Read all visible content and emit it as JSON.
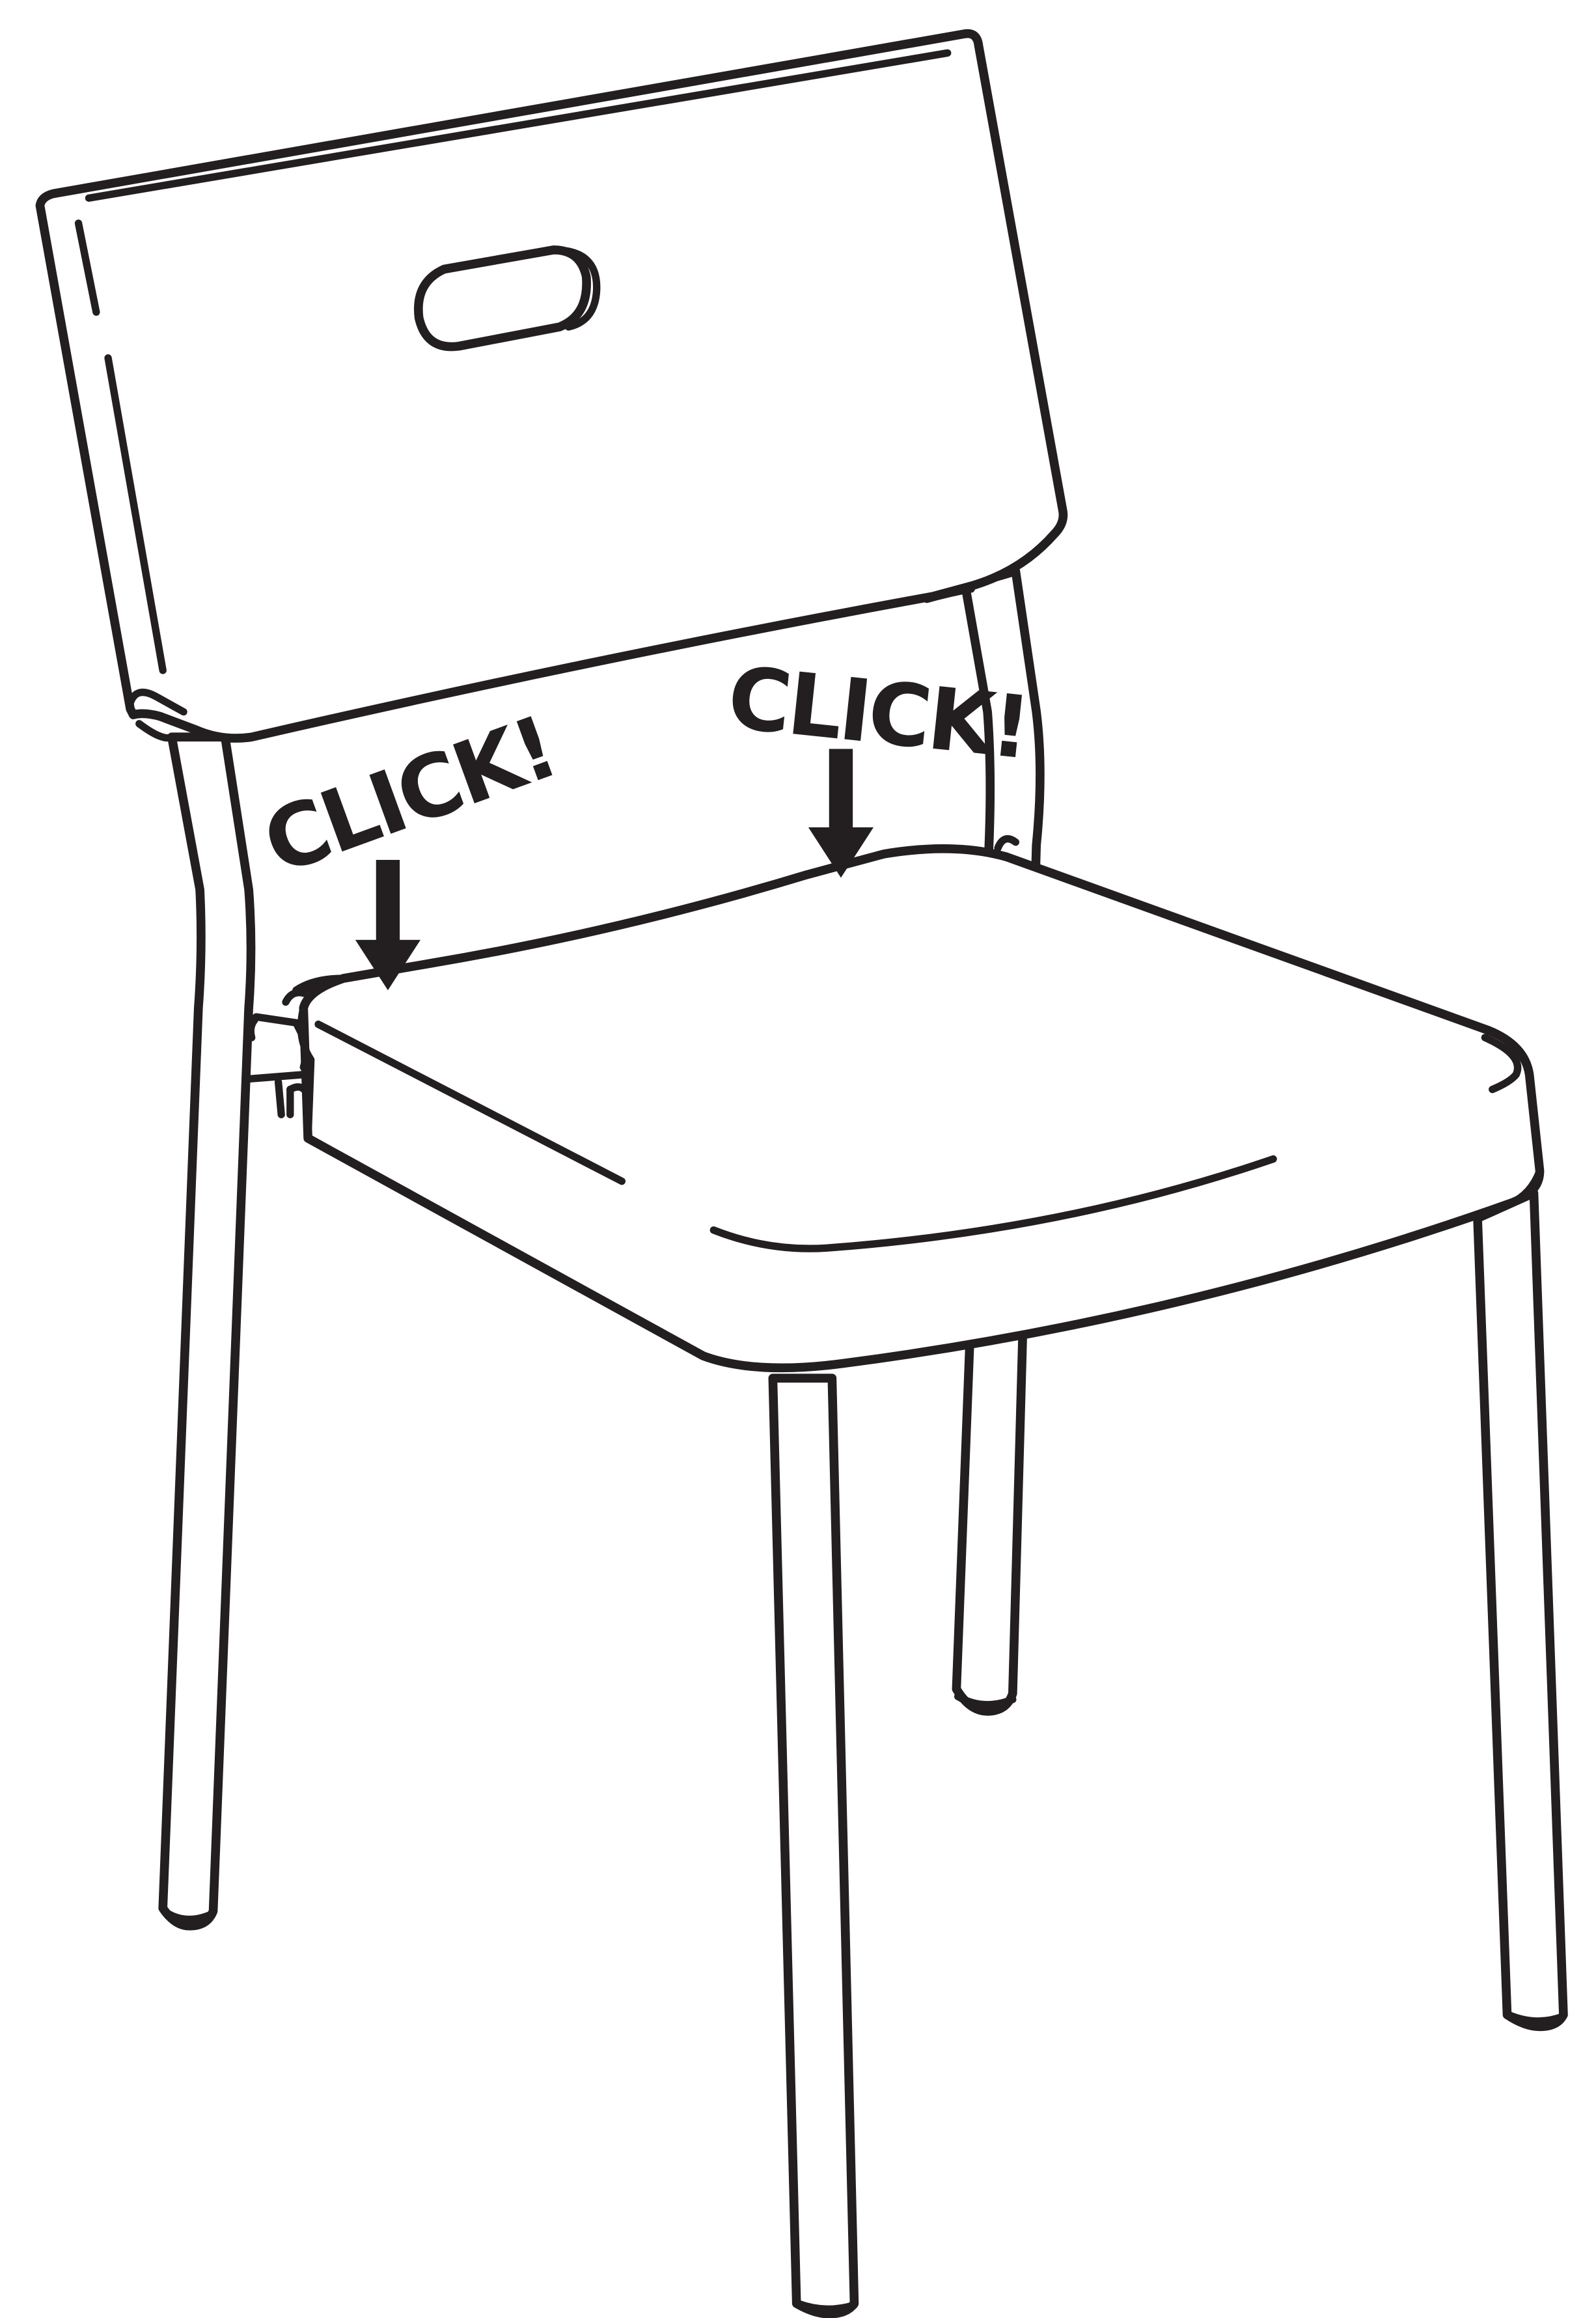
{
  "labels": {
    "click_left": "CLICK!",
    "click_right": "CLICK!"
  },
  "colors": {
    "ink": "#231f20",
    "paper": "#ffffff"
  }
}
